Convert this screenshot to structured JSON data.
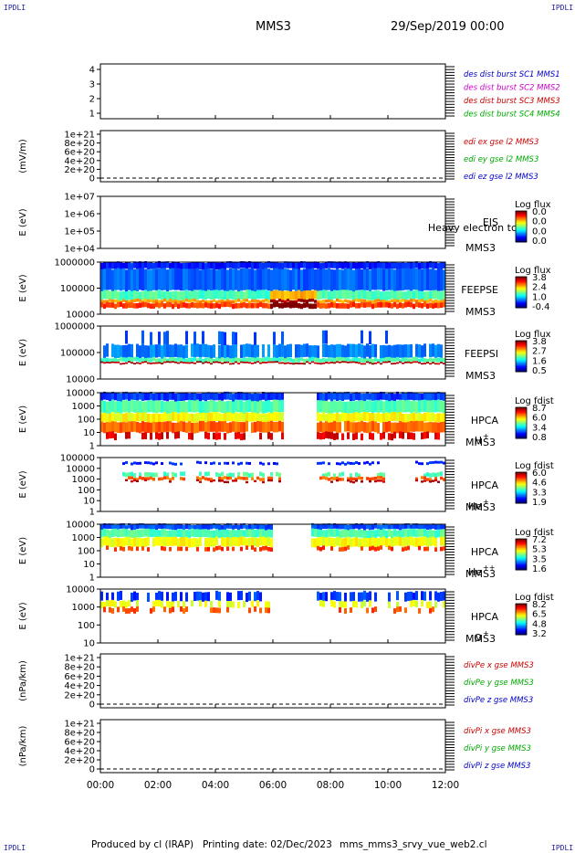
{
  "header": {
    "mission": "MMS3",
    "datetime": "29/Sep/2019 00:00",
    "logo_top_left": "IPDLI",
    "logo_top_right": "IPDLI",
    "logo_bottom_left": "IPDLI",
    "logo_bottom_right": "IPDLI"
  },
  "footer": {
    "produced": "Produced by cl (IRAP)",
    "printing": "Printing date: 02/Dec/2023",
    "file": "mms_mms3_srvy_vue_web2.cl"
  },
  "chart_data": {
    "type": "multi-panel-timeseries",
    "x_ticks": [
      "00:00",
      "02:00",
      "04:00",
      "06:00",
      "08:00",
      "10:00",
      "12:00"
    ],
    "panels": [
      {
        "kind": "line",
        "ylabel": "",
        "ticks": [
          "4",
          "3",
          "2",
          "1"
        ],
        "legend": [
          {
            "text": "des dist burst SC1 MMS1",
            "color": "#0000cc"
          },
          {
            "text": "des dist burst SC2 MMS2",
            "color": "#cc00cc"
          },
          {
            "text": "des dist burst SC3 MMS3",
            "color": "#cc0000"
          },
          {
            "text": "des dist burst SC4 MMS4",
            "color": "#00aa00"
          }
        ]
      },
      {
        "kind": "line",
        "ylabel": "(mV/m)",
        "ticks": [
          "1e+21",
          "8e+20",
          "6e+20",
          "4e+20",
          "2e+20",
          "0"
        ],
        "legend": [
          {
            "text": "edi ex gse l2 MMS3",
            "color": "#cc0000"
          },
          {
            "text": "edi ey gse l2 MMS3",
            "color": "#00aa00"
          },
          {
            "text": "edi ez gse l2 MMS3",
            "color": "#0000cc"
          }
        ]
      },
      {
        "kind": "spectrogram",
        "ylabel": "E (eV)",
        "ticks": [
          "1e+07",
          "1e+06",
          "1e+05",
          "1e+04"
        ],
        "instrument": "EIS",
        "instrument_extra": "Heavy electron tc",
        "sc": "MMS3",
        "species": "",
        "cb_title": "Log flux",
        "cb_values": [
          "0.0",
          "0.0",
          "0.0",
          "0.0"
        ],
        "empty": true
      },
      {
        "kind": "spectrogram",
        "ylabel": "E (eV)",
        "ticks": [
          "1000000",
          "100000",
          "10000"
        ],
        "instrument": "FEEPSE",
        "instrument_extra": "",
        "sc": "MMS3",
        "species": "",
        "cb_title": "Log flux",
        "cb_values": [
          "3.8",
          "2.4",
          "1.0",
          "-0.4"
        ],
        "empty": false
      },
      {
        "kind": "spectrogram",
        "ylabel": "E (eV)",
        "ticks": [
          "1000000",
          "100000",
          "10000"
        ],
        "instrument": "FEEPSI",
        "instrument_extra": "",
        "sc": "MMS3",
        "species": "",
        "cb_title": "Log flux",
        "cb_values": [
          "3.8",
          "2.7",
          "1.6",
          "0.5"
        ],
        "empty": false
      },
      {
        "kind": "spectrogram",
        "ylabel": "E (eV)",
        "ticks": [
          "10000",
          "1000",
          "100",
          "10",
          "1"
        ],
        "instrument": "HPCA",
        "instrument_extra": "",
        "sc": "MMS3",
        "species": "H",
        "species_sup": "+",
        "cb_title": "Log fdist",
        "cb_values": [
          "8.7",
          "6.0",
          "3.4",
          "0.8"
        ],
        "empty": false
      },
      {
        "kind": "spectrogram",
        "ylabel": "E (eV)",
        "ticks": [
          "100000",
          "10000",
          "1000",
          "100",
          "10",
          "1"
        ],
        "instrument": "HPCA",
        "instrument_extra": "",
        "sc": "MMS3",
        "species": "He",
        "species_sup": "+",
        "cb_title": "Log fdist",
        "cb_values": [
          "6.0",
          "4.6",
          "3.3",
          "1.9"
        ],
        "empty": false
      },
      {
        "kind": "spectrogram",
        "ylabel": "E (eV)",
        "ticks": [
          "10000",
          "1000",
          "100",
          "10",
          "1"
        ],
        "instrument": "HPCA",
        "instrument_extra": "",
        "sc": "MMS3",
        "species": "He",
        "species_sup": "++",
        "cb_title": "Log fdist",
        "cb_values": [
          "7.2",
          "5.3",
          "3.5",
          "1.6"
        ],
        "empty": false
      },
      {
        "kind": "spectrogram",
        "ylabel": "E (eV)",
        "ticks": [
          "10000",
          "1000",
          "100",
          "10"
        ],
        "instrument": "HPCA",
        "instrument_extra": "",
        "sc": "MMS3",
        "species": "O",
        "species_sup": "+",
        "cb_title": "Log fdist",
        "cb_values": [
          "8.2",
          "6.5",
          "4.8",
          "3.2"
        ],
        "empty": false
      },
      {
        "kind": "line",
        "ylabel": "(nPa/km)",
        "ticks": [
          "1e+21",
          "8e+20",
          "6e+20",
          "4e+20",
          "2e+20",
          "0"
        ],
        "legend": [
          {
            "text": "divPe x gse MMS3",
            "color": "#cc0000"
          },
          {
            "text": "divPe y gse MMS3",
            "color": "#00aa00"
          },
          {
            "text": "divPe z gse MMS3",
            "color": "#0000cc"
          }
        ]
      },
      {
        "kind": "line",
        "ylabel": "(nPa/km)",
        "ticks": [
          "1e+21",
          "8e+20",
          "6e+20",
          "4e+20",
          "2e+20",
          "0"
        ],
        "legend": [
          {
            "text": "divPi x gse MMS3",
            "color": "#cc0000"
          },
          {
            "text": "divPi y gse MMS3",
            "color": "#00aa00"
          },
          {
            "text": "divPi z gse MMS3",
            "color": "#0000cc"
          }
        ]
      }
    ]
  }
}
